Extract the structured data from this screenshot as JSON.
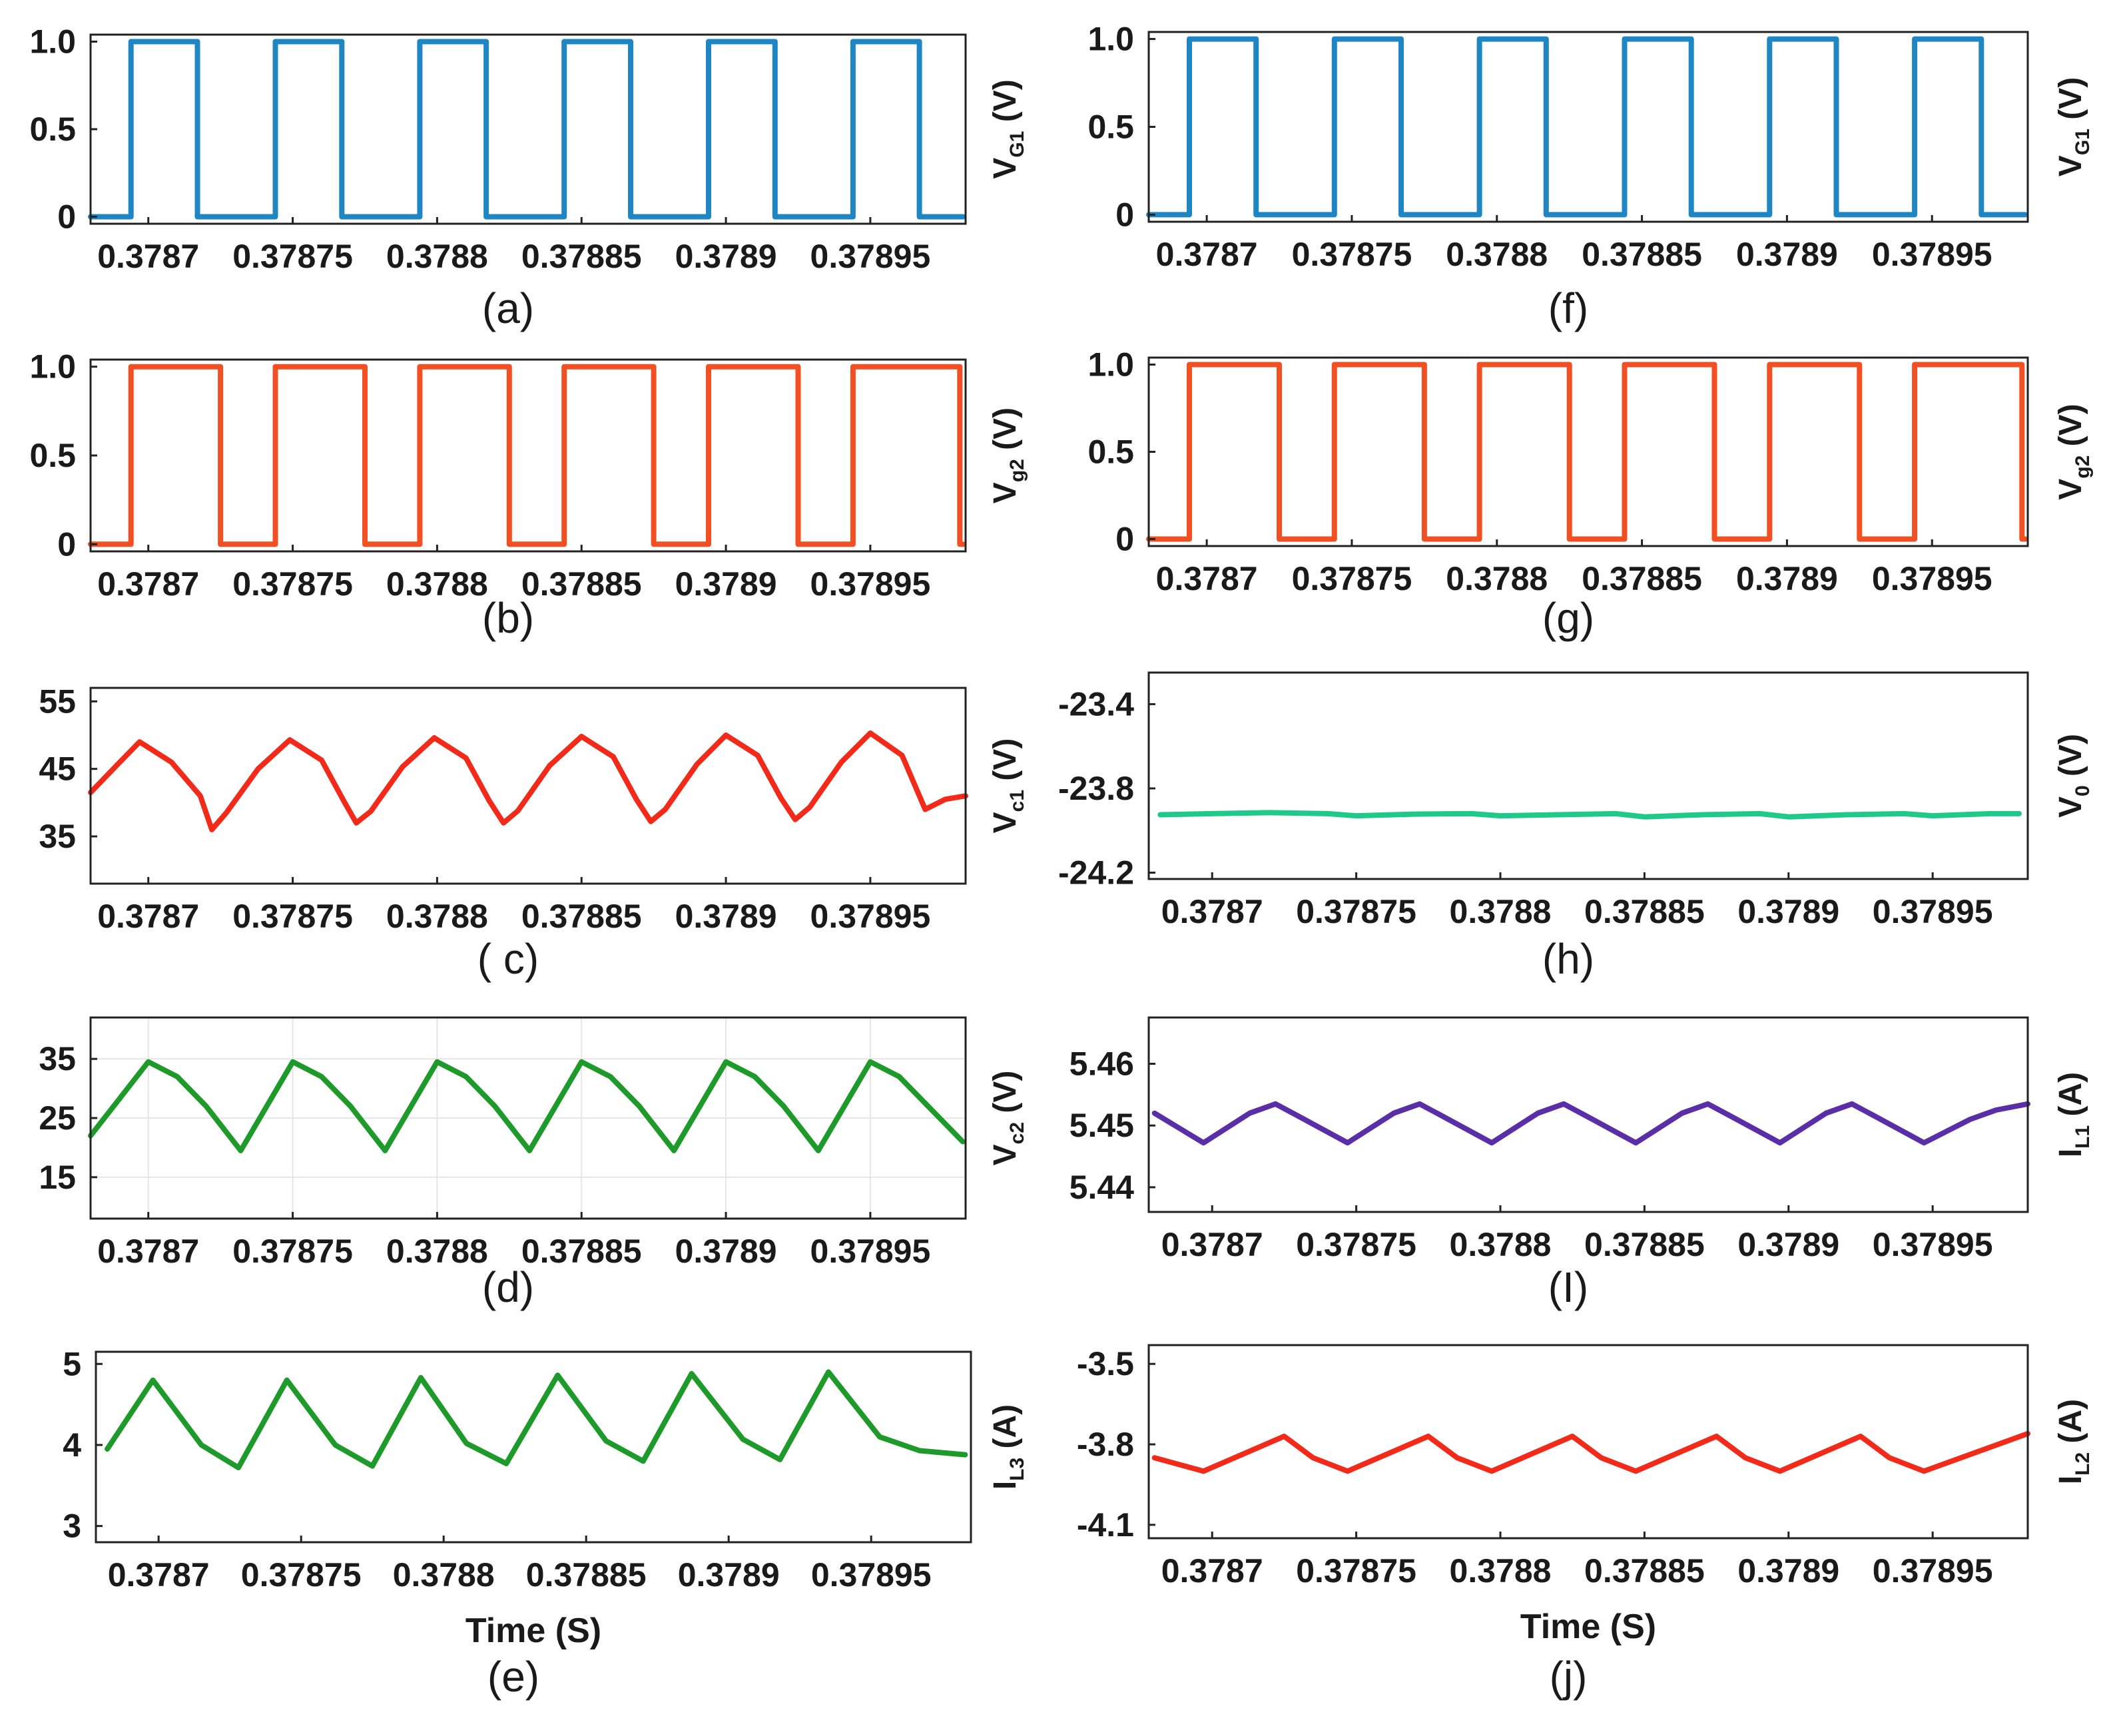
{
  "colors": {
    "blue": "#1f86c4",
    "orange": "#f25022",
    "red": "#f22a1a",
    "green": "#1e9a2a",
    "teal": "#1fc98a",
    "purple": "#5a2ea6"
  },
  "xlabel": "Time (S)",
  "chart_data": [
    {
      "type": "line",
      "id": "a",
      "caption": "(a)",
      "ylabel": {
        "main": "V",
        "sub": "G1",
        "unit": " (V)"
      },
      "ylabel_side": "right",
      "series": [
        {
          "name": "VG1",
          "color": "blue",
          "shape": "square",
          "rise": [
            0.378694,
            0.378744,
            0.378794,
            0.378844,
            0.378894,
            0.378944
          ],
          "fall": [
            0.378717,
            0.378767,
            0.378817,
            0.378867,
            0.378917,
            0.378967
          ],
          "low": 0,
          "high": 1
        }
      ],
      "xlim": [
        0.37868,
        0.378983
      ],
      "ylim": [
        -0.04,
        1.04
      ],
      "yticks": [
        {
          "v": 0,
          "t": "0"
        },
        {
          "v": 0.5,
          "t": "0.5"
        },
        {
          "v": 1,
          "t": "1.0"
        }
      ],
      "xticks": [
        {
          "v": 0.3787,
          "t": "0.3787"
        },
        {
          "v": 0.37875,
          "t": "0.37875"
        },
        {
          "v": 0.3788,
          "t": "0.3788"
        },
        {
          "v": 0.37885,
          "t": "0.37885"
        },
        {
          "v": 0.3789,
          "t": "0.3789"
        },
        {
          "v": 0.37895,
          "t": "0.37895"
        }
      ]
    },
    {
      "type": "line",
      "id": "b",
      "caption": "(b)",
      "ylabel": {
        "main": "V",
        "sub": "g2",
        "unit": " (V)"
      },
      "ylabel_side": "right",
      "series": [
        {
          "name": "Vg2",
          "color": "orange",
          "shape": "square",
          "rise": [
            0.378694,
            0.378744,
            0.378794,
            0.378844,
            0.378894,
            0.378944
          ],
          "fall": [
            0.378725,
            0.378775,
            0.378825,
            0.378875,
            0.378925,
            0.378981
          ],
          "low": 0,
          "high": 1
        }
      ],
      "xlim": [
        0.37868,
        0.378983
      ],
      "ylim": [
        -0.04,
        1.04
      ],
      "yticks": [
        {
          "v": 0,
          "t": "0"
        },
        {
          "v": 0.5,
          "t": "0.5"
        },
        {
          "v": 1,
          "t": "1.0"
        }
      ],
      "xticks": [
        {
          "v": 0.3787,
          "t": "0.3787"
        },
        {
          "v": 0.37875,
          "t": "0.37875"
        },
        {
          "v": 0.3788,
          "t": "0.3788"
        },
        {
          "v": 0.37885,
          "t": "0.37885"
        },
        {
          "v": 0.3789,
          "t": "0.3789"
        },
        {
          "v": 0.37895,
          "t": "0.37895"
        }
      ]
    },
    {
      "type": "line",
      "id": "c",
      "caption": "( c)",
      "ylabel": {
        "main": "V",
        "sub": "c1",
        "unit": " (V)"
      },
      "ylabel_side": "right",
      "series": [
        {
          "name": "Vc1",
          "color": "red",
          "shape": "curve",
          "x": [
            0.37868,
            0.378689,
            0.378697,
            0.378708,
            0.378718,
            0.378722,
            0.378727,
            0.378738,
            0.378749,
            0.37876,
            0.378768,
            0.378772,
            0.378777,
            0.378788,
            0.378799,
            0.37881,
            0.378818,
            0.378823,
            0.378828,
            0.378839,
            0.37885,
            0.378861,
            0.378869,
            0.378874,
            0.378879,
            0.37889,
            0.3789,
            0.378911,
            0.378919,
            0.378924,
            0.378929,
            0.37894,
            0.37895,
            0.378961,
            0.378969,
            0.378976,
            0.378983
          ],
          "y": [
            41.5,
            45.5,
            49.0,
            46.0,
            41.0,
            36.0,
            38.5,
            45.0,
            49.3,
            46.3,
            40.0,
            37.0,
            38.7,
            45.3,
            49.6,
            46.6,
            40.3,
            37.0,
            38.8,
            45.5,
            49.8,
            46.8,
            40.5,
            37.2,
            39.0,
            45.7,
            50.0,
            47.0,
            40.7,
            37.5,
            39.3,
            46.0,
            50.3,
            47.0,
            39.0,
            40.5,
            41.0
          ]
        }
      ],
      "xlim": [
        0.37868,
        0.378983
      ],
      "ylim": [
        28,
        57
      ],
      "yticks": [
        {
          "v": 35,
          "t": "35"
        },
        {
          "v": 45,
          "t": "45"
        },
        {
          "v": 55,
          "t": "55"
        }
      ],
      "xticks": [
        {
          "v": 0.3787,
          "t": "0.3787"
        },
        {
          "v": 0.37875,
          "t": "0.37875"
        },
        {
          "v": 0.3788,
          "t": "0.3788"
        },
        {
          "v": 0.37885,
          "t": "0.37885"
        },
        {
          "v": 0.3789,
          "t": "0.3789"
        },
        {
          "v": 0.37895,
          "t": "0.37895"
        }
      ]
    },
    {
      "type": "line",
      "id": "d",
      "caption": "(d)",
      "ylabel": {
        "main": "V",
        "sub": "c2",
        "unit": " (V)"
      },
      "ylabel_side": "right",
      "grid": true,
      "series": [
        {
          "name": "Vc2",
          "color": "green",
          "shape": "curve",
          "x": [
            0.37868,
            0.3787,
            0.37871,
            0.37872,
            0.378732,
            0.37875,
            0.37876,
            0.37877,
            0.378782,
            0.3788,
            0.37881,
            0.37882,
            0.378832,
            0.37885,
            0.37886,
            0.37887,
            0.378882,
            0.3789,
            0.37891,
            0.37892,
            0.378932,
            0.37895,
            0.37896,
            0.37897,
            0.378982
          ],
          "y": [
            22,
            34.5,
            32,
            27,
            19.5,
            34.5,
            32,
            27,
            19.5,
            34.5,
            32,
            27,
            19.5,
            34.5,
            32,
            27,
            19.5,
            34.5,
            32,
            27,
            19.5,
            34.5,
            32,
            27,
            21
          ]
        }
      ],
      "xlim": [
        0.37868,
        0.378983
      ],
      "ylim": [
        8,
        42
      ],
      "yticks": [
        {
          "v": 15,
          "t": "15"
        },
        {
          "v": 25,
          "t": "25"
        },
        {
          "v": 35,
          "t": "35"
        }
      ],
      "xticks": [
        {
          "v": 0.3787,
          "t": "0.3787"
        },
        {
          "v": 0.37875,
          "t": "0.37875"
        },
        {
          "v": 0.3788,
          "t": "0.3788"
        },
        {
          "v": 0.37885,
          "t": "0.37885"
        },
        {
          "v": 0.3789,
          "t": "0.3789"
        },
        {
          "v": 0.37895,
          "t": "0.37895"
        }
      ]
    },
    {
      "type": "line",
      "id": "e",
      "caption": "(e)",
      "ylabel": {
        "main": "I",
        "sub": "L3",
        "unit": " (A)"
      },
      "ylabel_side": "right",
      "xlabel": true,
      "series": [
        {
          "name": "IL3",
          "color": "green",
          "shape": "curve",
          "x": [
            0.378682,
            0.378698,
            0.378715,
            0.378728,
            0.378745,
            0.378762,
            0.378775,
            0.378792,
            0.378808,
            0.378822,
            0.37884,
            0.378857,
            0.37887,
            0.378887,
            0.378905,
            0.378918,
            0.378935,
            0.378953,
            0.378967,
            0.378983
          ],
          "y": [
            3.95,
            4.8,
            4.0,
            3.72,
            4.8,
            4.0,
            3.74,
            4.83,
            4.02,
            3.77,
            4.86,
            4.05,
            3.8,
            4.88,
            4.07,
            3.82,
            4.9,
            4.1,
            3.93,
            3.88
          ]
        }
      ],
      "xlim": [
        0.378678,
        0.378985
      ],
      "ylim": [
        2.8,
        5.15
      ],
      "yticks": [
        {
          "v": 3,
          "t": "3"
        },
        {
          "v": 4,
          "t": "4"
        },
        {
          "v": 5,
          "t": "5"
        }
      ],
      "xticks": [
        {
          "v": 0.3787,
          "t": "0.3787"
        },
        {
          "v": 0.37875,
          "t": "0.37875"
        },
        {
          "v": 0.3788,
          "t": "0.3788"
        },
        {
          "v": 0.37885,
          "t": "0.37885"
        },
        {
          "v": 0.3789,
          "t": "0.3789"
        },
        {
          "v": 0.37895,
          "t": "0.37895"
        }
      ]
    },
    {
      "type": "line",
      "id": "f",
      "caption": "(f)",
      "ylabel": {
        "main": "V",
        "sub": "G1",
        "unit": " (V)"
      },
      "ylabel_side": "right",
      "series": [
        {
          "name": "VG1",
          "color": "blue",
          "shape": "square",
          "rise": [
            0.378694,
            0.378744,
            0.378794,
            0.378844,
            0.378894,
            0.378944
          ],
          "fall": [
            0.378717,
            0.378767,
            0.378817,
            0.378867,
            0.378917,
            0.378967
          ],
          "low": 0,
          "high": 1
        }
      ],
      "xlim": [
        0.37868,
        0.378983
      ],
      "ylim": [
        -0.04,
        1.04
      ],
      "yticks": [
        {
          "v": 0,
          "t": "0"
        },
        {
          "v": 0.5,
          "t": "0.5"
        },
        {
          "v": 1,
          "t": "1.0"
        }
      ],
      "xticks": [
        {
          "v": 0.3787,
          "t": "0.3787"
        },
        {
          "v": 0.37875,
          "t": "0.37875"
        },
        {
          "v": 0.3788,
          "t": "0.3788"
        },
        {
          "v": 0.37885,
          "t": "0.37885"
        },
        {
          "v": 0.3789,
          "t": "0.3789"
        },
        {
          "v": 0.37895,
          "t": "0.37895"
        }
      ]
    },
    {
      "type": "line",
      "id": "g",
      "caption": "(g)",
      "ylabel": {
        "main": "V",
        "sub": "g2",
        "unit": " (V)"
      },
      "ylabel_side": "right",
      "series": [
        {
          "name": "Vg2",
          "color": "orange",
          "shape": "square",
          "rise": [
            0.378694,
            0.378744,
            0.378794,
            0.378844,
            0.378894,
            0.378944
          ],
          "fall": [
            0.378725,
            0.378775,
            0.378825,
            0.378875,
            0.378925,
            0.378981
          ],
          "low": 0,
          "high": 1
        }
      ],
      "xlim": [
        0.37868,
        0.378983
      ],
      "ylim": [
        -0.04,
        1.04
      ],
      "yticks": [
        {
          "v": 0,
          "t": "0"
        },
        {
          "v": 0.5,
          "t": "0.5"
        },
        {
          "v": 1,
          "t": "1.0"
        }
      ],
      "xticks": [
        {
          "v": 0.3787,
          "t": "0.3787"
        },
        {
          "v": 0.37875,
          "t": "0.37875"
        },
        {
          "v": 0.3788,
          "t": "0.3788"
        },
        {
          "v": 0.37885,
          "t": "0.37885"
        },
        {
          "v": 0.3789,
          "t": "0.3789"
        },
        {
          "v": 0.37895,
          "t": "0.37895"
        }
      ]
    },
    {
      "type": "line",
      "id": "h",
      "caption": "(h)",
      "ylabel": {
        "main": "V",
        "sub": "0",
        "unit": " (V)"
      },
      "ylabel_side": "right",
      "series": [
        {
          "name": "V0",
          "color": "teal",
          "shape": "curve",
          "x": [
            0.378682,
            0.3787,
            0.37872,
            0.37874,
            0.37875,
            0.37877,
            0.37879,
            0.3788,
            0.37882,
            0.37884,
            0.37885,
            0.37887,
            0.37889,
            0.3789,
            0.37892,
            0.37894,
            0.37895,
            0.37897,
            0.37898
          ],
          "y": [
            -23.925,
            -23.92,
            -23.915,
            -23.92,
            -23.93,
            -23.922,
            -23.92,
            -23.93,
            -23.925,
            -23.92,
            -23.935,
            -23.925,
            -23.92,
            -23.935,
            -23.925,
            -23.92,
            -23.93,
            -23.92,
            -23.92
          ]
        }
      ],
      "xlim": [
        0.378678,
        0.378983
      ],
      "ylim": [
        -24.23,
        -23.25
      ],
      "yticks": [
        {
          "v": -24.2,
          "t": "-24.2"
        },
        {
          "v": -23.8,
          "t": "-23.8"
        },
        {
          "v": -23.4,
          "t": "-23.4"
        }
      ],
      "xticks": [
        {
          "v": 0.3787,
          "t": "0.3787"
        },
        {
          "v": 0.37875,
          "t": "0.37875"
        },
        {
          "v": 0.3788,
          "t": "0.3788"
        },
        {
          "v": 0.37885,
          "t": "0.37885"
        },
        {
          "v": 0.3789,
          "t": "0.3789"
        },
        {
          "v": 0.37895,
          "t": "0.37895"
        }
      ]
    },
    {
      "type": "line",
      "id": "i",
      "caption": "(I)",
      "ylabel": {
        "main": "I",
        "sub": "L1",
        "unit": " (A)"
      },
      "ylabel_side": "right",
      "series": [
        {
          "name": "IL1",
          "color": "purple",
          "shape": "curve",
          "x": [
            0.37868,
            0.378697,
            0.378713,
            0.378722,
            0.37873,
            0.378747,
            0.378763,
            0.378772,
            0.37878,
            0.378797,
            0.378813,
            0.378822,
            0.37883,
            0.378847,
            0.378863,
            0.378872,
            0.37888,
            0.378897,
            0.378913,
            0.378922,
            0.37893,
            0.378947,
            0.378963,
            0.378972,
            0.378983
          ],
          "y": [
            5.452,
            5.4472,
            5.452,
            5.4535,
            5.4515,
            5.4472,
            5.452,
            5.4535,
            5.4515,
            5.4472,
            5.452,
            5.4535,
            5.4515,
            5.4472,
            5.452,
            5.4535,
            5.4515,
            5.4472,
            5.452,
            5.4535,
            5.4515,
            5.4472,
            5.451,
            5.4525,
            5.4535
          ]
        }
      ],
      "xlim": [
        0.378678,
        0.378983
      ],
      "ylim": [
        5.436,
        5.4675
      ],
      "yticks": [
        {
          "v": 5.44,
          "t": "5.44"
        },
        {
          "v": 5.45,
          "t": "5.45"
        },
        {
          "v": 5.46,
          "t": "5.46"
        }
      ],
      "xticks": [
        {
          "v": 0.3787,
          "t": "0.3787"
        },
        {
          "v": 0.37875,
          "t": "0.37875"
        },
        {
          "v": 0.3788,
          "t": "0.3788"
        },
        {
          "v": 0.37885,
          "t": "0.37885"
        },
        {
          "v": 0.3789,
          "t": "0.3789"
        },
        {
          "v": 0.37895,
          "t": "0.37895"
        }
      ]
    },
    {
      "type": "line",
      "id": "j",
      "caption": "(j)",
      "ylabel": {
        "main": "I",
        "sub": "L2",
        "unit": " (A)"
      },
      "ylabel_side": "right",
      "xlabel": true,
      "series": [
        {
          "name": "IL2",
          "color": "red",
          "shape": "curve",
          "x": [
            0.37868,
            0.378697,
            0.378725,
            0.378735,
            0.378747,
            0.378775,
            0.378785,
            0.378797,
            0.378825,
            0.378835,
            0.378847,
            0.378875,
            0.378885,
            0.378897,
            0.378925,
            0.378935,
            0.378947,
            0.378983
          ],
          "y": [
            -3.85,
            -3.9,
            -3.77,
            -3.85,
            -3.9,
            -3.77,
            -3.85,
            -3.9,
            -3.77,
            -3.85,
            -3.9,
            -3.77,
            -3.85,
            -3.9,
            -3.77,
            -3.85,
            -3.9,
            -3.76
          ]
        }
      ],
      "xlim": [
        0.378678,
        0.378983
      ],
      "ylim": [
        -4.15,
        -3.43
      ],
      "yticks": [
        {
          "v": -4.1,
          "t": "-4.1"
        },
        {
          "v": -3.8,
          "t": "-3.8"
        },
        {
          "v": -3.5,
          "t": "-3.5"
        }
      ],
      "xticks": [
        {
          "v": 0.3787,
          "t": "0.3787"
        },
        {
          "v": 0.37875,
          "t": "0.37875"
        },
        {
          "v": 0.3788,
          "t": "0.3788"
        },
        {
          "v": 0.37885,
          "t": "0.37885"
        },
        {
          "v": 0.3789,
          "t": "0.3789"
        },
        {
          "v": 0.37895,
          "t": "0.37895"
        }
      ]
    }
  ]
}
